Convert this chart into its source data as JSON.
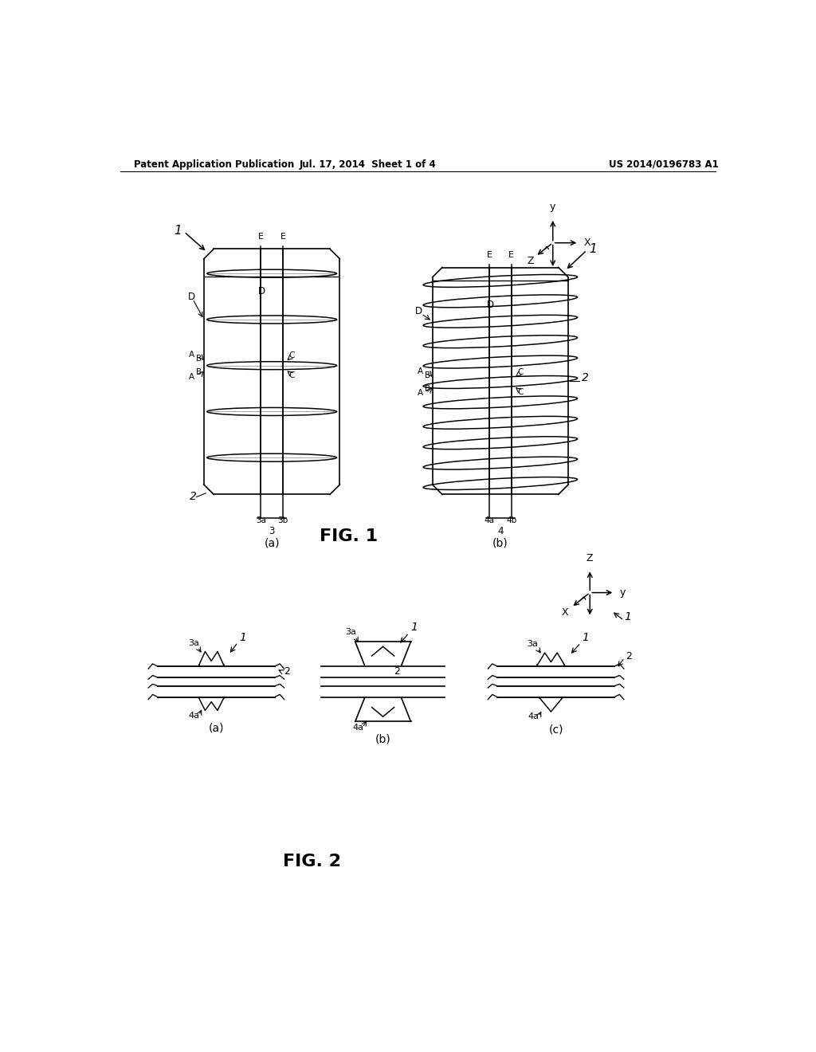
{
  "bg_color": "#ffffff",
  "text_color": "#000000",
  "line_color": "#000000",
  "header_left": "Patent Application Publication",
  "header_center": "Jul. 17, 2014  Sheet 1 of 4",
  "header_right": "US 2014/0196783 A1",
  "fig1_label": "FIG. 1",
  "fig2_label": "FIG. 2"
}
